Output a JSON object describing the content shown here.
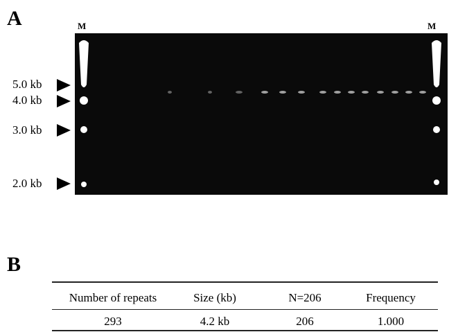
{
  "panel_a": {
    "label": "A",
    "lanes": [
      "M",
      "M"
    ],
    "size_markers": [
      "5.0 kb",
      "4.0 kb",
      "3.0 kb",
      "2.0 kb"
    ]
  },
  "panel_b": {
    "label": "B",
    "table": {
      "header": [
        "Number of repeats",
        "Size (kb)",
        "N=206",
        "Frequency"
      ],
      "rows": [
        [
          "293",
          "4.2 kb",
          "206",
          "1.000"
        ]
      ]
    }
  }
}
